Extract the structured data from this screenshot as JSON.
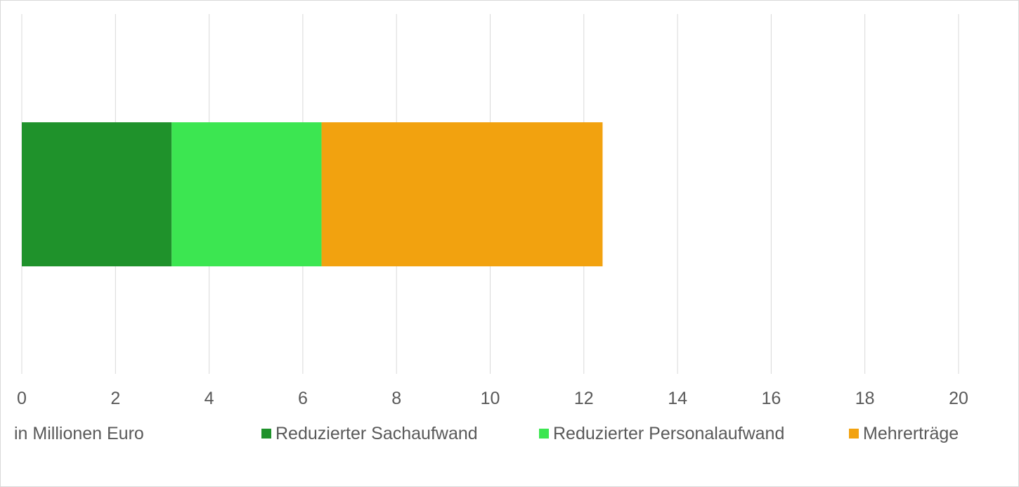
{
  "chart_data": {
    "type": "bar",
    "orientation": "horizontal",
    "stacked": true,
    "xlim": [
      0,
      20
    ],
    "x_ticks": [
      "0",
      "2",
      "4",
      "6",
      "8",
      "10",
      "12",
      "14",
      "16",
      "18",
      "20"
    ],
    "xlabel": "in Millionen Euro",
    "grid": true,
    "legend_position": "bottom",
    "series": [
      {
        "name": "Reduzierter Sachaufwand",
        "values": [
          3.2
        ],
        "color": "#1f922b"
      },
      {
        "name": "Reduzierter Personalaufwand",
        "values": [
          3.2
        ],
        "color": "#3ce651"
      },
      {
        "name": "Mehrerträge",
        "values": [
          6.0
        ],
        "color": "#f2a20f"
      }
    ]
  }
}
